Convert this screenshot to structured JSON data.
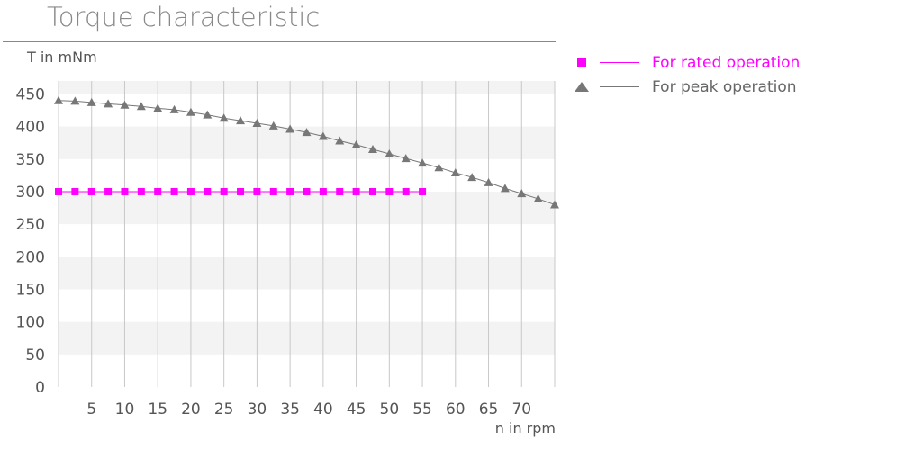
{
  "chart_data": {
    "type": "line",
    "title": "Torque characteristic",
    "ylabel": "T in mNm",
    "xlabel": "n in rpm",
    "xlim": [
      0,
      75
    ],
    "ylim": [
      0,
      470
    ],
    "x_ticks": [
      5,
      10,
      15,
      20,
      25,
      30,
      35,
      40,
      45,
      50,
      55,
      60,
      65,
      70
    ],
    "y_ticks": [
      0,
      50,
      100,
      150,
      200,
      250,
      300,
      350,
      400,
      450
    ],
    "grid": "vertical lines and alternating horizontal bands",
    "legend_position": "right",
    "series": [
      {
        "name": "For rated operation",
        "marker": "square",
        "color": "#ff00ff",
        "x": [
          0,
          2.5,
          5,
          7.5,
          10,
          12.5,
          15,
          17.5,
          20,
          22.5,
          25,
          27.5,
          30,
          32.5,
          35,
          37.5,
          40,
          42.5,
          45,
          47.5,
          50,
          52.5,
          55
        ],
        "y": [
          300,
          300,
          300,
          300,
          300,
          300,
          300,
          300,
          300,
          300,
          300,
          300,
          300,
          300,
          300,
          300,
          300,
          300,
          300,
          300,
          300,
          300,
          300
        ]
      },
      {
        "name": "For peak operation",
        "marker": "triangle",
        "color": "#777777",
        "x": [
          0,
          2.5,
          5,
          7.5,
          10,
          12.5,
          15,
          17.5,
          20,
          22.5,
          25,
          27.5,
          30,
          32.5,
          35,
          37.5,
          40,
          42.5,
          45,
          47.5,
          50,
          52.5,
          55,
          57.5,
          60,
          62.5,
          65,
          67.5,
          70,
          72.5,
          75
        ],
        "y": [
          440,
          439,
          437,
          435,
          433,
          431,
          428,
          426,
          422,
          418,
          413,
          409,
          405,
          401,
          396,
          391,
          385,
          378,
          372,
          365,
          358,
          351,
          344,
          337,
          329,
          322,
          314,
          305,
          297,
          289,
          280
        ]
      }
    ]
  }
}
